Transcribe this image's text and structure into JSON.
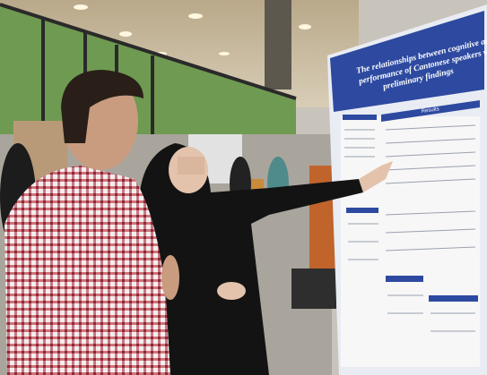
{
  "poster": {
    "title": "The relationships between cognitive and linguistic performance of Cantonese speakers with aphasia: preliminary findings",
    "sections": [
      "Results"
    ]
  }
}
